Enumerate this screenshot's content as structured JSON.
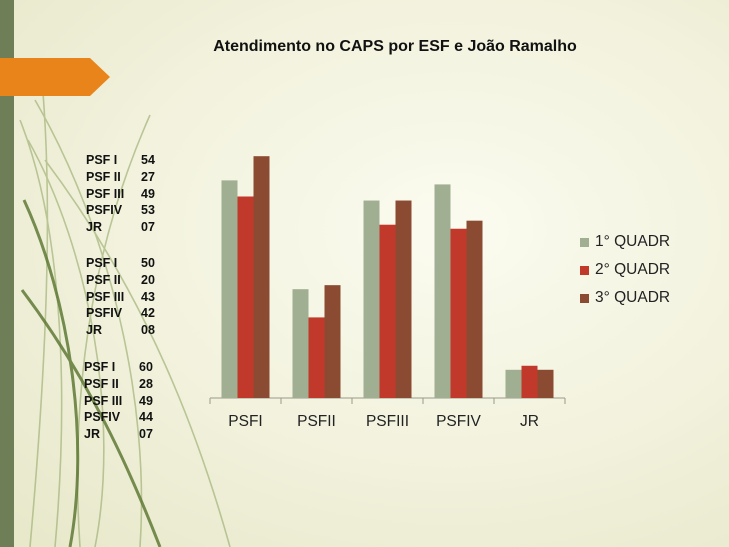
{
  "title": "Atendimento no CAPS por ESF e João Ramalho",
  "stats_groups": [
    {
      "rows": [
        {
          "label": "PSF I",
          "value": "54"
        },
        {
          "label": "PSF II",
          "value": "27"
        },
        {
          "label": "PSF III",
          "value": "49"
        },
        {
          "label": "PSFIV",
          "value": "53"
        },
        {
          "label": "JR",
          "value": "07"
        }
      ]
    },
    {
      "rows": [
        {
          "label": "PSF I",
          "value": "50"
        },
        {
          "label": "PSF II",
          "value": "20"
        },
        {
          "label": "PSF III",
          "value": "43"
        },
        {
          "label": "PSFIV",
          "value": "42"
        },
        {
          "label": "JR",
          "value": "08"
        }
      ]
    },
    {
      "rows": [
        {
          "label": "PSF I",
          "value": "60"
        },
        {
          "label": "PSF II",
          "value": "28"
        },
        {
          "label": "PSF III",
          "value": "49"
        },
        {
          "label": "PSFIV",
          "value": "44"
        },
        {
          "label": "JR",
          "value": "07"
        }
      ]
    }
  ],
  "colors": {
    "strip": "#6e7e56",
    "arrow": "#e8841a",
    "series": [
      "#a0ae92",
      "#c0392b",
      "#8b4a32"
    ]
  },
  "chart_data": {
    "type": "bar",
    "title": "Atendimento no CAPS por ESF e João Ramalho",
    "categories": [
      "PSFI",
      "PSFII",
      "PSFIII",
      "PSFIV",
      "JR"
    ],
    "series": [
      {
        "name": "1° QUADR",
        "values": [
          54,
          27,
          49,
          53,
          7
        ]
      },
      {
        "name": "2° QUADR",
        "values": [
          50,
          20,
          43,
          42,
          8
        ]
      },
      {
        "name": "3° QUADR",
        "values": [
          60,
          28,
          49,
          44,
          7
        ]
      }
    ],
    "ylim": [
      0,
      65
    ],
    "grid": false,
    "legend": "right"
  }
}
